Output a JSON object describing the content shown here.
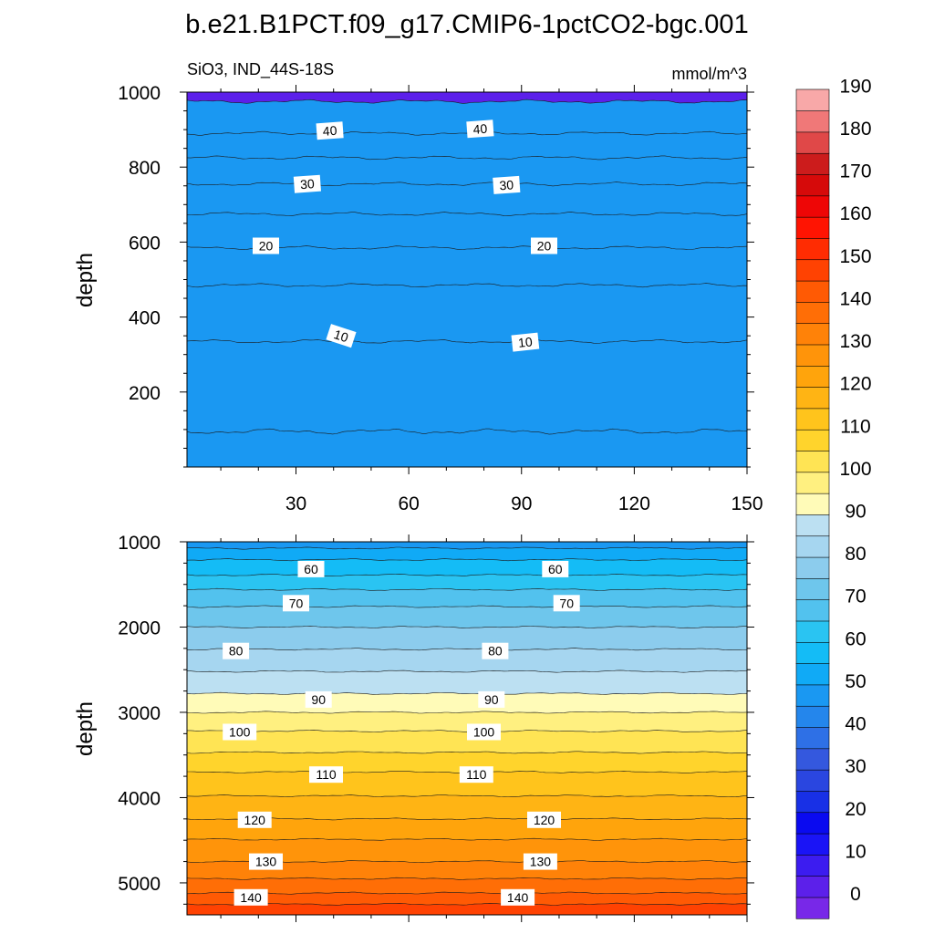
{
  "title": "b.e21.B1PCT.f09_g17.CMIP6-1pctCO2-bgc.001",
  "left_label": "SiO3, IND_44S-18S",
  "right_label": "mmol/m^3",
  "chart_data": [
    {
      "type": "heatmap",
      "panel": "upper",
      "ylabel": "depth",
      "xlabel": "",
      "xlim": [
        1,
        150
      ],
      "ylim": [
        1000,
        0
      ],
      "x_ticks": [
        30,
        60,
        90,
        120,
        150
      ],
      "y_ticks": [
        200,
        400,
        600,
        800,
        1000
      ],
      "contour_levels": [
        5,
        10,
        15,
        20,
        25,
        30,
        35,
        40,
        45
      ],
      "contour_depths": [
        95,
        335,
        485,
        585,
        675,
        755,
        825,
        890,
        975
      ],
      "contour_labels": [
        {
          "value": "10",
          "x": 42,
          "depth": 350
        },
        {
          "value": "10",
          "x": 91,
          "depth": 333
        },
        {
          "value": "20",
          "x": 22,
          "depth": 590
        },
        {
          "value": "20",
          "x": 96,
          "depth": 590
        },
        {
          "value": "30",
          "x": 33,
          "depth": 755
        },
        {
          "value": "30",
          "x": 86,
          "depth": 752
        },
        {
          "value": "40",
          "x": 39,
          "depth": 897
        },
        {
          "value": "40",
          "x": 79,
          "depth": 902
        }
      ]
    },
    {
      "type": "heatmap",
      "panel": "lower",
      "ylabel": "depth",
      "xlabel": "",
      "xlim": [
        1,
        150
      ],
      "ylim": [
        1000,
        5375
      ],
      "x_ticks": [
        30,
        60,
        90,
        120,
        150
      ],
      "y_ticks": [
        1000,
        2000,
        3000,
        4000,
        5000
      ],
      "contour_levels": [
        50,
        55,
        60,
        65,
        70,
        75,
        80,
        85,
        90,
        95,
        100,
        105,
        110,
        115,
        120,
        125,
        130,
        135,
        140,
        145
      ],
      "contour_depths": [
        1075,
        1210,
        1390,
        1560,
        1760,
        2000,
        2260,
        2520,
        2780,
        3000,
        3220,
        3470,
        3700,
        3980,
        4250,
        4490,
        4750,
        4950,
        5120,
        5250
      ],
      "contour_labels": [
        {
          "value": "60",
          "x": 34,
          "depth": 1320
        },
        {
          "value": "60",
          "x": 99,
          "depth": 1320
        },
        {
          "value": "70",
          "x": 30,
          "depth": 1720
        },
        {
          "value": "70",
          "x": 102,
          "depth": 1720
        },
        {
          "value": "80",
          "x": 14,
          "depth": 2280
        },
        {
          "value": "80",
          "x": 83,
          "depth": 2280
        },
        {
          "value": "90",
          "x": 36,
          "depth": 2850
        },
        {
          "value": "90",
          "x": 82,
          "depth": 2850
        },
        {
          "value": "100",
          "x": 15,
          "depth": 3230
        },
        {
          "value": "100",
          "x": 80,
          "depth": 3230
        },
        {
          "value": "110",
          "x": 38,
          "depth": 3730
        },
        {
          "value": "110",
          "x": 78,
          "depth": 3730
        },
        {
          "value": "120",
          "x": 19,
          "depth": 4260
        },
        {
          "value": "120",
          "x": 96,
          "depth": 4260
        },
        {
          "value": "130",
          "x": 22,
          "depth": 4750
        },
        {
          "value": "130",
          "x": 95,
          "depth": 4750
        },
        {
          "value": "140",
          "x": 18,
          "depth": 5170
        },
        {
          "value": "140",
          "x": 89,
          "depth": 5170
        }
      ]
    }
  ],
  "colorbar": {
    "levels": [
      0,
      5,
      10,
      15,
      20,
      25,
      30,
      35,
      40,
      45,
      50,
      55,
      60,
      65,
      70,
      75,
      80,
      85,
      90,
      95,
      100,
      105,
      110,
      115,
      120,
      125,
      130,
      135,
      140,
      145,
      150,
      155,
      160,
      165,
      170,
      175,
      180,
      185,
      190
    ],
    "labels": [
      "0",
      "10",
      "20",
      "30",
      "40",
      "50",
      "60",
      "70",
      "80",
      "90",
      "100",
      "110",
      "120",
      "130",
      "140",
      "150",
      "160",
      "170",
      "180",
      "190"
    ],
    "colors": [
      "#7828e8",
      "#5c20ea",
      "#3c1cf0",
      "#1a14f6",
      "#0a0af0",
      "#1830e6",
      "#2a46e0",
      "#3458de",
      "#2e70e6",
      "#2486ec",
      "#1a98f2",
      "#10aaf6",
      "#14bcf6",
      "#2ac4f2",
      "#52c2ee",
      "#6ec6ec",
      "#8ccced",
      "#a6d6f0",
      "#bce0f2",
      "#fffbb8",
      "#fff080",
      "#ffe454",
      "#ffd42c",
      "#ffc41c",
      "#ffb414",
      "#ffa40c",
      "#ff940a",
      "#ff8208",
      "#ff6e06",
      "#ff5a04",
      "#ff4202",
      "#ff2c02",
      "#ff1402",
      "#ee0606",
      "#d60a0a",
      "#cc1c1c",
      "#e04848",
      "#f07878",
      "#f8a8a8"
    ]
  }
}
